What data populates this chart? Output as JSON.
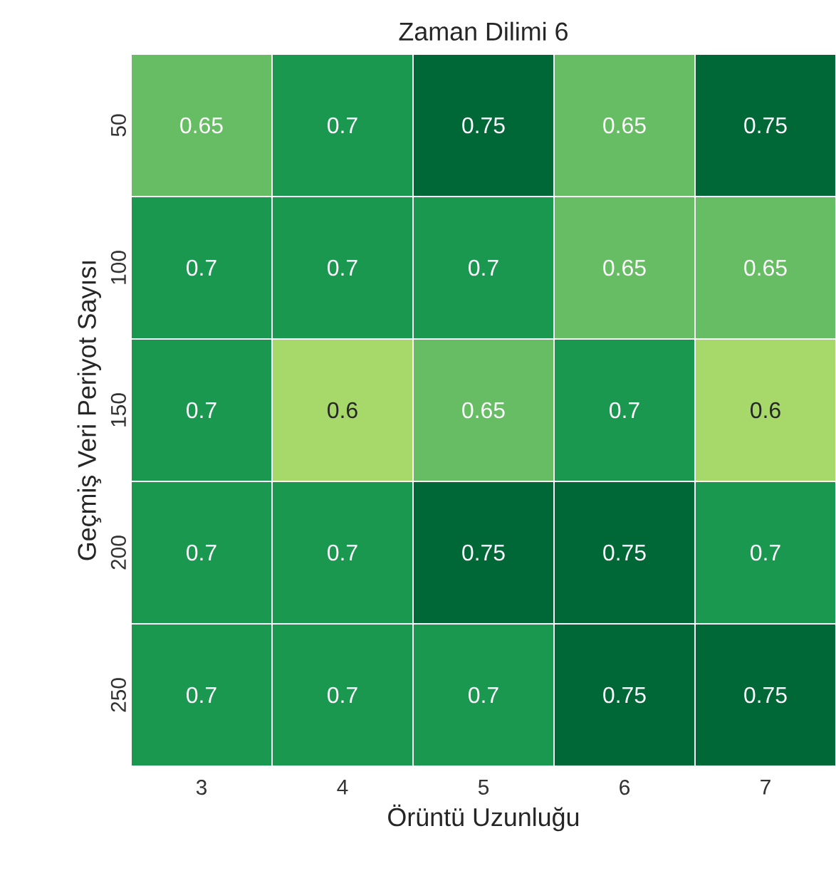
{
  "chart_data": {
    "type": "heatmap",
    "title": "Zaman Dilimi 6",
    "xlabel": "Örüntü Uzunluğu",
    "ylabel": "Geçmiş Veri Periyot Sayısı",
    "categories": [
      "3",
      "4",
      "5",
      "6",
      "7"
    ],
    "y_categories": [
      "50",
      "100",
      "150",
      "200",
      "250"
    ],
    "cells": [
      [
        0.65,
        0.7,
        0.75,
        0.65,
        0.75
      ],
      [
        0.7,
        0.7,
        0.7,
        0.65,
        0.65
      ],
      [
        0.7,
        0.6,
        0.65,
        0.7,
        0.6
      ],
      [
        0.7,
        0.7,
        0.75,
        0.75,
        0.7
      ],
      [
        0.7,
        0.7,
        0.7,
        0.75,
        0.75
      ]
    ],
    "data_labels": true
  }
}
